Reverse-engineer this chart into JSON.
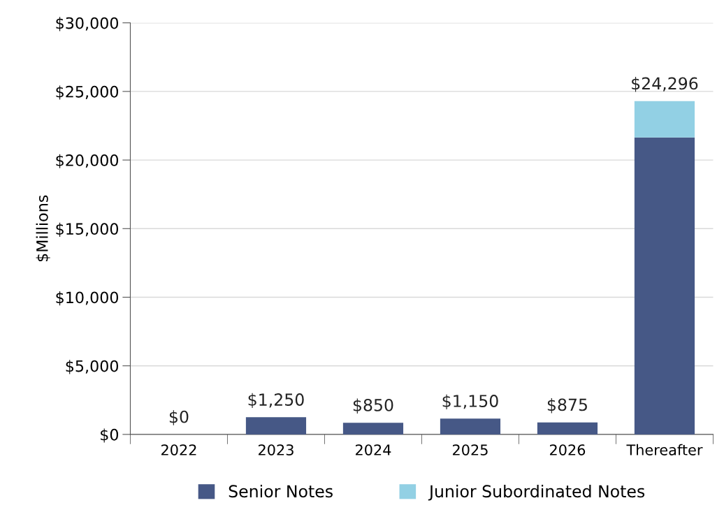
{
  "chart_data": {
    "type": "bar",
    "stacked": true,
    "ylabel": "$Millions",
    "categories": [
      "2022",
      "2023",
      "2024",
      "2025",
      "2026",
      "Thereafter"
    ],
    "series": [
      {
        "name": "Senior Notes",
        "color": "#465886",
        "values": [
          0,
          1250,
          850,
          1150,
          875,
          21650
        ]
      },
      {
        "name": "Junior Subordinated Notes",
        "color": "#92d0e4",
        "values": [
          0,
          0,
          0,
          0,
          0,
          2646
        ]
      }
    ],
    "totals": [
      "$0",
      "$1,250",
      "$850",
      "$1,150",
      "$875",
      "$24,296"
    ],
    "ylim": [
      0,
      30000
    ],
    "yticks": [
      {
        "value": 0,
        "label": "$0"
      },
      {
        "value": 5000,
        "label": "$5,000"
      },
      {
        "value": 10000,
        "label": "$10,000"
      },
      {
        "value": 15000,
        "label": "$15,000"
      },
      {
        "value": 20000,
        "label": "$20,000"
      },
      {
        "value": 25000,
        "label": "$25,000"
      },
      {
        "value": 30000,
        "label": "$30,000"
      }
    ],
    "grid": "y",
    "legend": "bottom"
  }
}
